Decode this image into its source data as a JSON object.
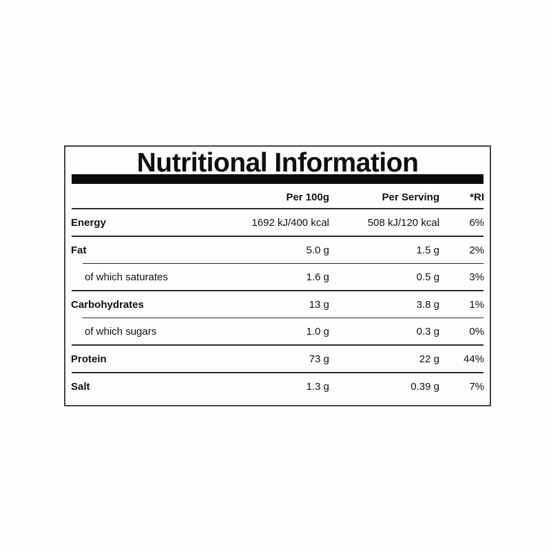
{
  "label": {
    "title": "Nutritional Information",
    "columns": [
      "Per 100g",
      "Per Serving",
      "*RI"
    ],
    "rows": [
      {
        "name": "Energy",
        "per100": "1692 kJ/400 kcal",
        "serving": "508 kJ/120 kcal",
        "ri": "6%",
        "bold": true,
        "indent": false,
        "rule": "full"
      },
      {
        "name": "Fat",
        "per100": "5.0 g",
        "serving": "1.5 g",
        "ri": "2%",
        "bold": true,
        "indent": false,
        "rule": "full"
      },
      {
        "name": "of which saturates",
        "per100": "1.6 g",
        "serving": "0.5 g",
        "ri": "3%",
        "bold": false,
        "indent": true,
        "rule": "indent"
      },
      {
        "name": "Carbohydrates",
        "per100": "13 g",
        "serving": "3.8 g",
        "ri": "1%",
        "bold": true,
        "indent": false,
        "rule": "full"
      },
      {
        "name": "of which sugars",
        "per100": "1.0 g",
        "serving": "0.3 g",
        "ri": "0%",
        "bold": false,
        "indent": true,
        "rule": "indent"
      },
      {
        "name": "Protein",
        "per100": "73 g",
        "serving": "22 g",
        "ri": "44%",
        "bold": true,
        "indent": false,
        "rule": "full"
      },
      {
        "name": "Salt",
        "per100": "1.3 g",
        "serving": "0.39 g",
        "ri": "7%",
        "bold": true,
        "indent": false,
        "rule": "full"
      }
    ]
  },
  "colors": {
    "panel_border": "#454545",
    "title_bar": "#0b0b0b",
    "divider": "#2b2b2b",
    "text": "#101010",
    "background": "#fefefe"
  }
}
